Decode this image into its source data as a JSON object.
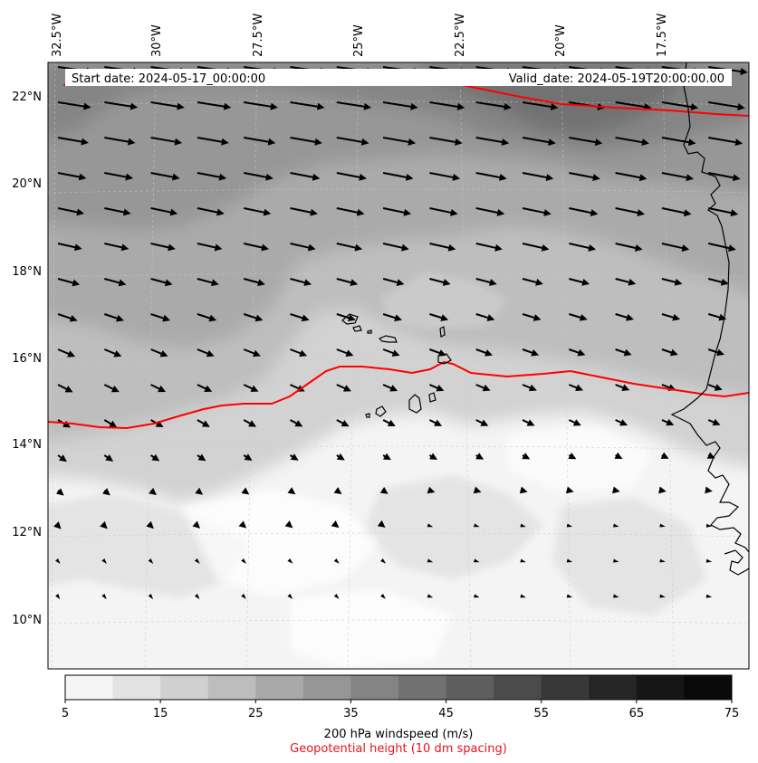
{
  "header": {
    "start_label": "Start date: 2024-05-17_00:00:00",
    "valid_label": "Valid_date: 2024-05-19T20:00:00.00"
  },
  "map": {
    "longitude_labels": [
      "32.5°W",
      "30°W",
      "27.5°W",
      "25°W",
      "22.5°W",
      "20°W",
      "17.5°W"
    ],
    "latitude_labels": [
      "22°N",
      "20°N",
      "18°N",
      "16°N",
      "14°N",
      "12°N",
      "10°N"
    ],
    "geopotential_contour_color": "#ff0000",
    "wind_vector_color": "#000000",
    "coastline_color": "#000000"
  },
  "colorbar": {
    "ticks": [
      "5",
      "15",
      "25",
      "35",
      "45",
      "55",
      "65",
      "75"
    ],
    "bin_colors": [
      "#f5f5f5",
      "#e3e3e3",
      "#d0d0d0",
      "#bdbdbd",
      "#a9a9a9",
      "#969696",
      "#848484",
      "#717171",
      "#5e5e5e",
      "#4b4b4b",
      "#383838",
      "#262626",
      "#161616",
      "#0a0a0a"
    ],
    "label": "200 hPa windspeed (m/s)",
    "sublabel": "Geopotential height (10 dm spacing)",
    "sublabel_color": "#e8141c"
  }
}
